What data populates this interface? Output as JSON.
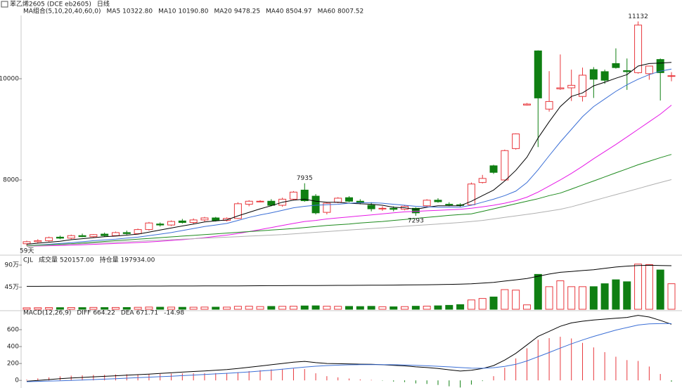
{
  "header": {
    "symbol": "苯乙烯2605",
    "code": "(DCE eb2605)",
    "period": "日线"
  },
  "chart_data": [
    {
      "type": "candlestick",
      "indicator": "MA组合(5,10,20,40,60,0)",
      "ylim": [
        6556,
        11250
      ],
      "yticks": [
        8000,
        10000
      ],
      "up_color": "#e8383d",
      "down_color": "#0f7f12",
      "ohlc": [
        [
          6740,
          6800,
          6700,
          6780
        ],
        [
          6780,
          6830,
          6750,
          6800
        ],
        [
          6800,
          6880,
          6780,
          6860
        ],
        [
          6870,
          6900,
          6830,
          6850
        ],
        [
          6850,
          6920,
          6830,
          6900
        ],
        [
          6900,
          6940,
          6870,
          6880
        ],
        [
          6880,
          6930,
          6860,
          6920
        ],
        [
          6930,
          6960,
          6880,
          6900
        ],
        [
          6900,
          6980,
          6890,
          6960
        ],
        [
          6960,
          7000,
          6920,
          6940
        ],
        [
          6940,
          7040,
          6930,
          7020
        ],
        [
          7020,
          7170,
          7000,
          7150
        ],
        [
          7130,
          7160,
          7080,
          7110
        ],
        [
          7110,
          7200,
          7090,
          7180
        ],
        [
          7190,
          7230,
          7140,
          7160
        ],
        [
          7160,
          7240,
          7130,
          7210
        ],
        [
          7210,
          7270,
          7180,
          7250
        ],
        [
          7250,
          7270,
          7180,
          7200
        ],
        [
          7200,
          7260,
          7180,
          7240
        ],
        [
          7240,
          7560,
          7230,
          7530
        ],
        [
          7520,
          7600,
          7480,
          7580
        ],
        [
          7580,
          7600,
          7560,
          7580
        ],
        [
          7580,
          7620,
          7480,
          7500
        ],
        [
          7500,
          7650,
          7470,
          7620
        ],
        [
          7620,
          7780,
          7600,
          7760
        ],
        [
          7800,
          7935,
          7570,
          7590
        ],
        [
          7680,
          7720,
          7320,
          7350
        ],
        [
          7360,
          7560,
          7320,
          7540
        ],
        [
          7560,
          7660,
          7540,
          7640
        ],
        [
          7650,
          7680,
          7560,
          7580
        ],
        [
          7580,
          7620,
          7520,
          7550
        ],
        [
          7500,
          7560,
          7380,
          7430
        ],
        [
          7430,
          7480,
          7390,
          7440
        ],
        [
          7440,
          7480,
          7380,
          7420
        ],
        [
          7420,
          7500,
          7400,
          7480
        ],
        [
          7440,
          7460,
          7293,
          7350
        ],
        [
          7490,
          7620,
          7470,
          7600
        ],
        [
          7600,
          7640,
          7550,
          7570
        ],
        [
          7520,
          7560,
          7480,
          7510
        ],
        [
          7510,
          7540,
          7470,
          7500
        ],
        [
          7510,
          7950,
          7500,
          7920
        ],
        [
          7950,
          8100,
          7930,
          8030
        ],
        [
          8280,
          8300,
          8120,
          8150
        ],
        [
          8000,
          8600,
          7990,
          8580
        ],
        [
          8620,
          8920,
          8600,
          8910
        ],
        [
          9480,
          9520,
          9470,
          9500
        ],
        [
          10550,
          10560,
          8650,
          9620
        ],
        [
          9400,
          10150,
          9350,
          9550
        ],
        [
          9800,
          10480,
          9780,
          9820
        ],
        [
          9820,
          10180,
          9560,
          9870
        ],
        [
          9650,
          10220,
          9550,
          10070
        ],
        [
          10180,
          10230,
          9620,
          9990
        ],
        [
          10140,
          10180,
          9900,
          9970
        ],
        [
          10300,
          10600,
          10200,
          10220
        ],
        [
          10160,
          10400,
          9780,
          10140
        ],
        [
          10120,
          11132,
          10100,
          11060
        ],
        [
          10100,
          10250,
          9980,
          10250
        ],
        [
          10380,
          10400,
          9570,
          10120
        ],
        [
          10050,
          10130,
          9950,
          10060
        ]
      ],
      "series": [
        {
          "name": "MA5",
          "value_label": "10322.80",
          "color": "#000000",
          "values": [
            6730,
            6750,
            6770,
            6790,
            6820,
            6840,
            6860,
            6880,
            6890,
            6910,
            6930,
            6970,
            7010,
            7050,
            7090,
            7130,
            7170,
            7190,
            7210,
            7290,
            7360,
            7430,
            7490,
            7560,
            7600,
            7620,
            7580,
            7560,
            7560,
            7540,
            7530,
            7520,
            7500,
            7460,
            7450,
            7420,
            7460,
            7490,
            7490,
            7490,
            7580,
            7690,
            7800,
            7980,
            8190,
            8450,
            8830,
            9150,
            9450,
            9650,
            9720,
            9860,
            9930,
            10010,
            10080,
            10250,
            10300,
            10310,
            10322.8
          ]
        },
        {
          "name": "MA10",
          "value_label": "10190.80",
          "color": "#3b6fd6",
          "values": [
            6700,
            6715,
            6730,
            6745,
            6760,
            6780,
            6800,
            6815,
            6830,
            6850,
            6870,
            6900,
            6930,
            6960,
            7000,
            7040,
            7080,
            7110,
            7140,
            7200,
            7260,
            7310,
            7350,
            7400,
            7450,
            7480,
            7500,
            7510,
            7520,
            7540,
            7550,
            7550,
            7540,
            7520,
            7500,
            7480,
            7470,
            7460,
            7460,
            7460,
            7500,
            7560,
            7620,
            7690,
            7780,
            7950,
            8200,
            8480,
            8750,
            9000,
            9250,
            9450,
            9600,
            9750,
            9880,
            9990,
            10080,
            10150,
            10190.8
          ]
        },
        {
          "name": "MA20",
          "value_label": "9478.25",
          "color": "#e619e6",
          "values": [
            6690,
            6695,
            6700,
            6705,
            6712,
            6720,
            6728,
            6736,
            6745,
            6755,
            6765,
            6775,
            6790,
            6805,
            6820,
            6840,
            6860,
            6885,
            6910,
            6940,
            6980,
            7020,
            7060,
            7100,
            7140,
            7180,
            7200,
            7230,
            7250,
            7270,
            7290,
            7310,
            7330,
            7350,
            7370,
            7380,
            7390,
            7400,
            7410,
            7420,
            7440,
            7470,
            7500,
            7540,
            7590,
            7660,
            7760,
            7880,
            8000,
            8130,
            8270,
            8420,
            8560,
            8700,
            8850,
            9000,
            9150,
            9300,
            9478.25
          ]
        },
        {
          "name": "MA40",
          "value_label": "8504.97",
          "color": "#1d8a1d",
          "values": [
            6700,
            6710,
            6720,
            6730,
            6740,
            6755,
            6770,
            6785,
            6800,
            6815,
            6830,
            6845,
            6860,
            6875,
            6890,
            6905,
            6920,
            6935,
            6950,
            6965,
            6980,
            6995,
            7010,
            7025,
            7040,
            7060,
            7080,
            7100,
            7115,
            7130,
            7150,
            7165,
            7180,
            7200,
            7220,
            7240,
            7260,
            7280,
            7300,
            7315,
            7330,
            7380,
            7430,
            7480,
            7530,
            7580,
            7630,
            7690,
            7740,
            7820,
            7900,
            7980,
            8060,
            8140,
            8220,
            8300,
            8370,
            8440,
            8504.97
          ]
        },
        {
          "name": "MA60",
          "value_label": "8007.52",
          "color": "#b0b0b0",
          "values": [
            6690,
            6700,
            6710,
            6720,
            6730,
            6740,
            6750,
            6760,
            6770,
            6780,
            6790,
            6800,
            6810,
            6820,
            6830,
            6840,
            6850,
            6860,
            6870,
            6880,
            6890,
            6900,
            6910,
            6920,
            6935,
            6950,
            6965,
            6980,
            6995,
            7010,
            7025,
            7040,
            7055,
            7070,
            7085,
            7100,
            7115,
            7130,
            7145,
            7160,
            7180,
            7200,
            7230,
            7260,
            7290,
            7320,
            7350,
            7385,
            7420,
            7470,
            7530,
            7590,
            7650,
            7710,
            7770,
            7830,
            7890,
            7950,
            8007.52
          ]
        }
      ],
      "annotations": [
        "59天"
      ]
    },
    {
      "type": "volume",
      "indicator": "CJL",
      "ylim": [
        0,
        1030000
      ],
      "yticks": [
        {
          "value": 900000,
          "label": "90万"
        },
        {
          "value": 450000,
          "label": "45万"
        }
      ],
      "y2lim": [
        0,
        230000
      ],
      "series": [
        {
          "name": "成交量",
          "value_label": "520157.00",
          "values": [
            30000,
            32000,
            35000,
            33000,
            36000,
            34000,
            38000,
            35000,
            37000,
            36000,
            40000,
            45000,
            42000,
            44000,
            40000,
            42000,
            45000,
            43000,
            44000,
            60000,
            62000,
            55000,
            58000,
            60000,
            62000,
            68000,
            70000,
            62000,
            60000,
            58000,
            55000,
            60000,
            52000,
            50000,
            54000,
            62000,
            64000,
            70000,
            80000,
            95000,
            190000,
            220000,
            250000,
            400000,
            390000,
            90000,
            710000,
            460000,
            580000,
            460000,
            460000,
            460000,
            520000,
            600000,
            560000,
            920000,
            910000,
            800000,
            520157
          ]
        },
        {
          "name": "持仓量",
          "value_label": "197934.00",
          "color": "#000000",
          "axis": "y2",
          "values": [
            104000,
            104200,
            104300,
            104500,
            104600,
            104700,
            104800,
            105000,
            105100,
            105200,
            105300,
            105400,
            105500,
            105600,
            105700,
            105800,
            105900,
            106000,
            106200,
            106500,
            106800,
            107000,
            107200,
            107300,
            107500,
            107800,
            108000,
            108200,
            108500,
            108700,
            109000,
            109300,
            109500,
            110000,
            110500,
            111000,
            111500,
            112000,
            113000,
            114000,
            116000,
            119000,
            122000,
            128000,
            134000,
            140000,
            150000,
            160000,
            168000,
            172000,
            176000,
            180000,
            186000,
            192000,
            196000,
            199000,
            200000,
            199000,
            197934
          ]
        }
      ]
    },
    {
      "type": "macd",
      "indicator": "MACD(12,26,9)",
      "ylim": [
        -90,
        783
      ],
      "yticks": [
        0,
        200,
        400,
        600
      ],
      "series": [
        {
          "name": "DIFF",
          "value_label": "664.22",
          "color": "#000000",
          "values": [
            -10,
            0,
            10,
            20,
            28,
            35,
            42,
            48,
            55,
            62,
            68,
            75,
            82,
            90,
            98,
            105,
            112,
            120,
            128,
            140,
            155,
            170,
            185,
            200,
            215,
            225,
            210,
            200,
            198,
            195,
            192,
            190,
            185,
            178,
            172,
            160,
            152,
            140,
            125,
            110,
            120,
            140,
            175,
            240,
            320,
            420,
            520,
            580,
            640,
            680,
            700,
            715,
            725,
            735,
            745,
            770,
            750,
            710,
            664.22
          ]
        },
        {
          "name": "DEA",
          "value_label": "671.71",
          "color": "#3b6fd6",
          "values": [
            -15,
            -12,
            -8,
            -4,
            0,
            5,
            10,
            15,
            20,
            26,
            32,
            38,
            44,
            50,
            56,
            63,
            70,
            77,
            84,
            92,
            100,
            110,
            120,
            132,
            145,
            158,
            168,
            175,
            180,
            184,
            186,
            187,
            187,
            185,
            182,
            178,
            173,
            167,
            160,
            152,
            145,
            144,
            150,
            165,
            190,
            230,
            280,
            330,
            382,
            432,
            478,
            520,
            558,
            595,
            625,
            655,
            668,
            672,
            671.71
          ]
        }
      ],
      "histogram": {
        "value_label": "-14.98",
        "values": [
          10,
          24,
          36,
          48,
          56,
          60,
          64,
          66,
          70,
          72,
          72,
          74,
          76,
          80,
          84,
          84,
          84,
          86,
          88,
          96,
          110,
          120,
          130,
          136,
          140,
          134,
          84,
          50,
          36,
          22,
          12,
          6,
          -4,
          -14,
          -20,
          -36,
          -42,
          -54,
          -70,
          -84,
          -50,
          -8,
          50,
          150,
          260,
          380,
          480,
          500,
          516,
          496,
          444,
          390,
          334,
          280,
          240,
          230,
          164,
          76,
          -14.98
        ]
      }
    }
  ]
}
